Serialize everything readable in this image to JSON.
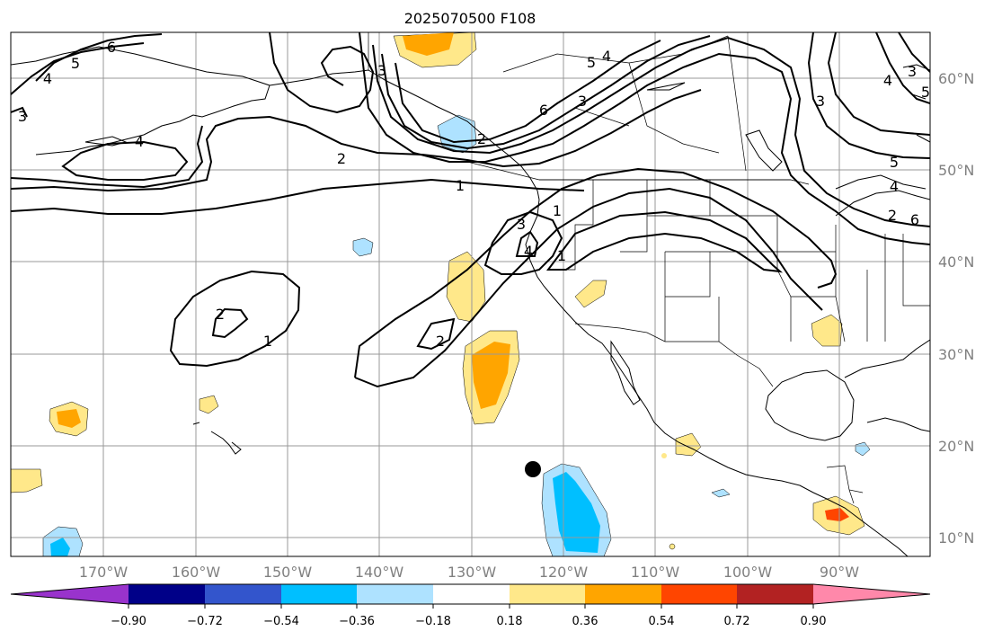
{
  "title": "2025070500 F108",
  "lon_labels": [
    "170°W",
    "160°W",
    "150°W",
    "140°W",
    "130°W",
    "120°W",
    "110°W",
    "100°W",
    "90°W"
  ],
  "lat_labels": [
    "60°N",
    "50°N",
    "40°N",
    "30°N",
    "20°N",
    "10°N"
  ],
  "colorbar": {
    "labels": [
      "−0.90",
      "−0.72",
      "−0.54",
      "−0.36",
      "−0.18",
      "0.18",
      "0.36",
      "0.54",
      "0.72",
      "0.90"
    ],
    "colors": [
      "#9933cc",
      "#000088",
      "#3355cc",
      "#00bfff",
      "#aee2ff",
      "#ffffff",
      "#ffe88a",
      "#ffa500",
      "#ff4500",
      "#b22222",
      "#ff88aa"
    ]
  },
  "contour_labels": [
    "6",
    "5",
    "4",
    "3",
    "4",
    "3",
    "2",
    "1",
    "2",
    "1",
    "2",
    "3",
    "4",
    "1",
    "2",
    "3",
    "4",
    "5",
    "6",
    "1",
    "2",
    "3",
    "4",
    "5",
    "6",
    "3",
    "4",
    "5"
  ],
  "storm_marker": "black-dot"
}
